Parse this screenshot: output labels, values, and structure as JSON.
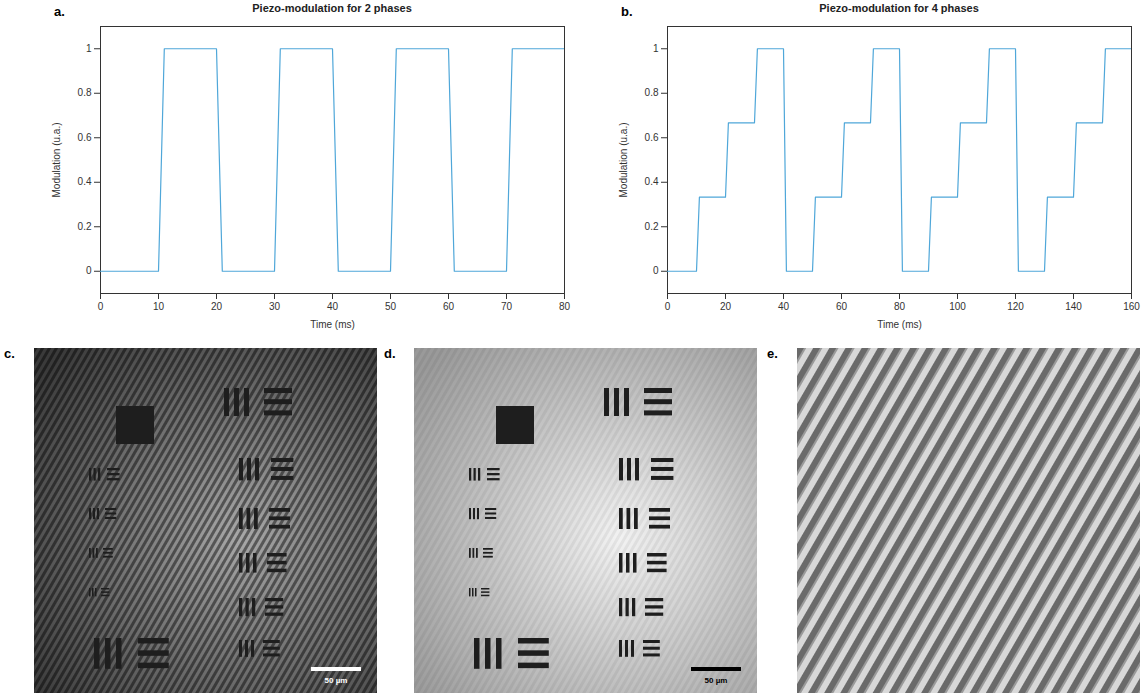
{
  "chart_data": [
    {
      "panel": "a.",
      "type": "line",
      "title": "Piezo-modulation for 2 phases",
      "x_label": "Time (ms)",
      "y_label": "Modulation (u.a.)",
      "x": [
        0,
        10,
        11,
        20,
        21,
        30,
        31,
        40,
        41,
        50,
        51,
        60,
        61,
        70,
        71,
        80
      ],
      "values": [
        0,
        0,
        1,
        1,
        0,
        0,
        1,
        1,
        0,
        0,
        1,
        1,
        0,
        0,
        1,
        1
      ],
      "color": "#4fa7d9",
      "xlim": [
        0,
        80
      ],
      "xticks": [
        0,
        10,
        20,
        30,
        40,
        50,
        60,
        70,
        80
      ],
      "ylim": [
        -0.1,
        1.1
      ],
      "yticks": [
        0,
        0.2,
        0.4,
        0.6,
        0.8,
        1
      ],
      "grid": false
    },
    {
      "panel": "b.",
      "type": "line",
      "title": "Piezo-modulation for 4 phases",
      "x_label": "Time (ms)",
      "y_label": "Modulation (u.a.)",
      "x": [
        0,
        10,
        11,
        20,
        21,
        30,
        31,
        40,
        41,
        50,
        51,
        60,
        61,
        70,
        71,
        80,
        81,
        90,
        91,
        100,
        101,
        110,
        111,
        120,
        121,
        130,
        131,
        140,
        141,
        150,
        151,
        160
      ],
      "values": [
        0,
        0,
        0.333,
        0.333,
        0.667,
        0.667,
        1,
        1,
        0,
        0,
        0.333,
        0.333,
        0.667,
        0.667,
        1,
        1,
        0,
        0,
        0.333,
        0.333,
        0.667,
        0.667,
        1,
        1,
        0,
        0,
        0.333,
        0.333,
        0.667,
        0.667,
        1,
        1
      ],
      "color": "#4fa7d9",
      "xlim": [
        0,
        160
      ],
      "xticks": [
        0,
        20,
        40,
        60,
        80,
        100,
        120,
        140,
        160
      ],
      "ylim": [
        -0.1,
        1.1
      ],
      "yticks": [
        0,
        0.2,
        0.4,
        0.6,
        0.8,
        1
      ],
      "grid": false
    }
  ],
  "images": [
    {
      "panel": "c.",
      "scale_bar": "50 µm"
    },
    {
      "panel": "d.",
      "scale_bar": "50 µm"
    },
    {
      "panel": "e."
    }
  ]
}
